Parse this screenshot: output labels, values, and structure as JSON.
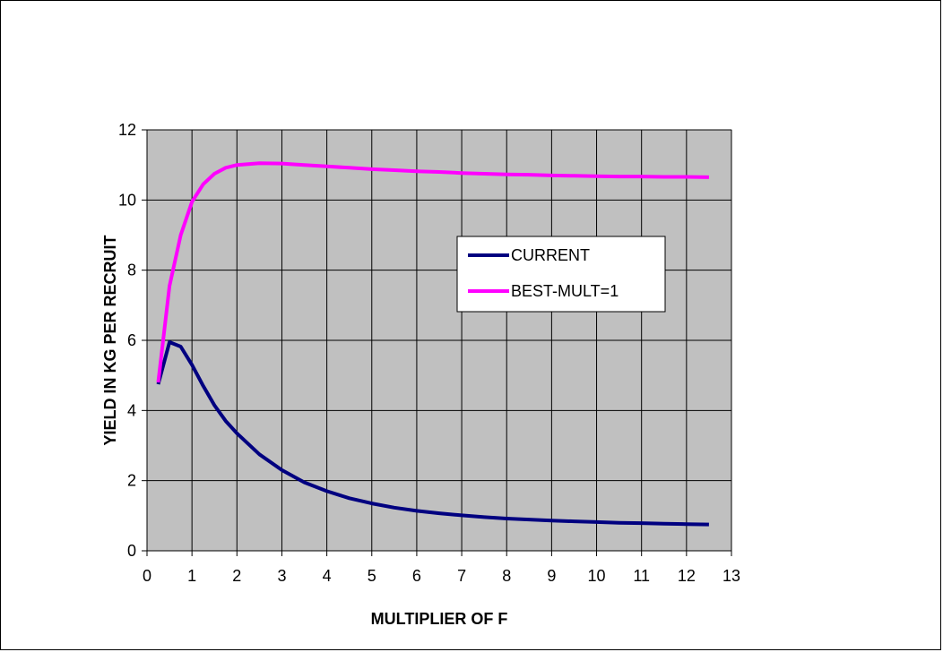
{
  "chart_data": {
    "type": "line",
    "title": "",
    "xlabel": "MULTIPLIER OF F",
    "ylabel": "YIELD IN KG PER RECRUIT",
    "xlim": [
      0,
      13
    ],
    "ylim": [
      0,
      12
    ],
    "xticks": [
      0,
      1,
      2,
      3,
      4,
      5,
      6,
      7,
      8,
      9,
      10,
      11,
      12,
      13
    ],
    "yticks": [
      0,
      2,
      4,
      6,
      8,
      10,
      12
    ],
    "grid": true,
    "plot_background": "#c0c0c0",
    "legend_position": "center-right",
    "series": [
      {
        "name": "CURRENT",
        "color": "#000080",
        "x": [
          0.25,
          0.5,
          0.75,
          1.0,
          1.25,
          1.5,
          1.75,
          2.0,
          2.5,
          3.0,
          3.5,
          4.0,
          4.5,
          5.0,
          5.5,
          6.0,
          6.5,
          7.0,
          7.5,
          8.0,
          8.5,
          9.0,
          9.5,
          10.0,
          10.5,
          11.0,
          11.5,
          12.0,
          12.5
        ],
        "y": [
          4.75,
          5.95,
          5.82,
          5.3,
          4.7,
          4.15,
          3.7,
          3.35,
          2.75,
          2.3,
          1.95,
          1.7,
          1.5,
          1.35,
          1.23,
          1.14,
          1.07,
          1.01,
          0.96,
          0.92,
          0.89,
          0.86,
          0.84,
          0.82,
          0.8,
          0.79,
          0.77,
          0.76,
          0.75
        ]
      },
      {
        "name": "BEST-MULT=1",
        "color": "#ff00ff",
        "x": [
          0.25,
          0.5,
          0.75,
          1.0,
          1.25,
          1.5,
          1.75,
          2.0,
          2.5,
          3.0,
          3.5,
          4.0,
          4.5,
          5.0,
          5.5,
          6.0,
          6.5,
          7.0,
          7.5,
          8.0,
          8.5,
          9.0,
          9.5,
          10.0,
          10.5,
          11.0,
          11.5,
          12.0,
          12.5
        ],
        "y": [
          4.8,
          7.55,
          9.0,
          9.95,
          10.45,
          10.75,
          10.92,
          11.0,
          11.05,
          11.04,
          11.0,
          10.96,
          10.92,
          10.88,
          10.85,
          10.82,
          10.8,
          10.77,
          10.75,
          10.73,
          10.72,
          10.7,
          10.69,
          10.68,
          10.67,
          10.67,
          10.66,
          10.66,
          10.65
        ]
      }
    ]
  }
}
